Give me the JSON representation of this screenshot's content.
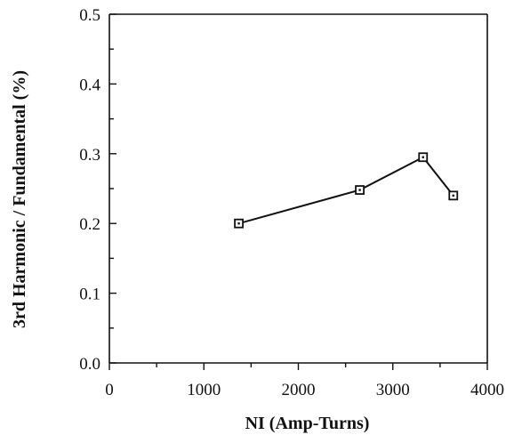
{
  "chart_data": {
    "type": "line",
    "title": "",
    "xlabel": "NI  (Amp-Turns)",
    "ylabel": "3rd Harmonic / Fundamental (%)",
    "xlim": [
      0,
      4000
    ],
    "ylim": [
      0.0,
      0.5
    ],
    "x_ticks": [
      0,
      1000,
      2000,
      3000,
      4000
    ],
    "x_tick_labels": [
      "0",
      "1000",
      "2000",
      "3000",
      "4000"
    ],
    "y_ticks": [
      0.0,
      0.1,
      0.2,
      0.3,
      0.4,
      0.5
    ],
    "y_tick_labels": [
      "0.0",
      "0.1",
      "0.2",
      "0.3",
      "0.4",
      "0.5"
    ],
    "grid": false,
    "legend": "none",
    "series": [
      {
        "marker": "square",
        "x": [
          1370,
          2650,
          3320,
          3640
        ],
        "y": [
          0.2,
          0.248,
          0.295,
          0.24
        ]
      }
    ]
  }
}
